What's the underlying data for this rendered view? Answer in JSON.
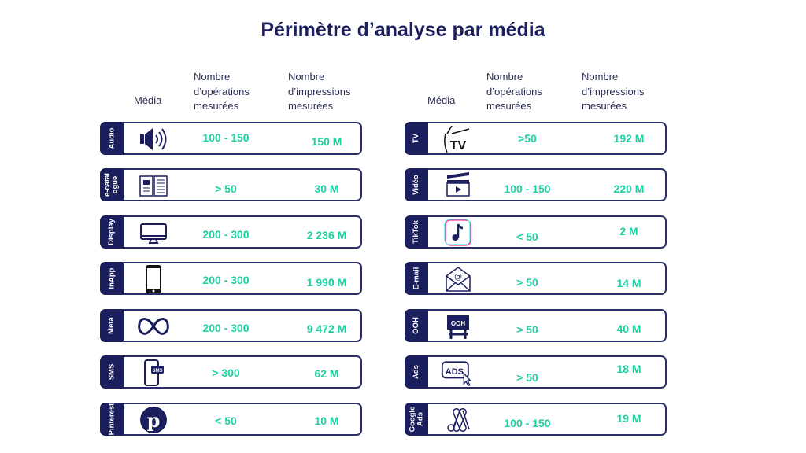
{
  "title": "Périmètre d’analyse par média",
  "headers": {
    "media": "Média",
    "operations": [
      "Nombre",
      "d’opérations",
      "mesurées"
    ],
    "impressions": [
      "Nombre",
      "d’impressions",
      "mesurées"
    ]
  },
  "colors": {
    "navy": "#1b1f5e",
    "accent": "#1ecfa2"
  },
  "left": [
    {
      "label": "Audio",
      "icon": "speaker-icon",
      "operations": "100 - 150",
      "impressions": "150 M"
    },
    {
      "label": "e-catal\nogue",
      "icon": "catalog-book-icon",
      "operations": "> 50",
      "impressions": "30 M"
    },
    {
      "label": "Display",
      "icon": "monitor-icon",
      "operations": "200 - 300",
      "impressions": "2 236 M"
    },
    {
      "label": "InApp",
      "icon": "smartphone-icon",
      "operations": "200 - 300",
      "impressions": "1 990 M"
    },
    {
      "label": "Meta",
      "icon": "meta-logo-icon",
      "operations": "200 - 300",
      "impressions": "9 472 M"
    },
    {
      "label": "SMS",
      "icon": "sms-phone-icon",
      "operations": "> 300",
      "impressions": "62 M"
    },
    {
      "label": "Pinterest",
      "icon": "pinterest-logo-icon",
      "operations": "< 50",
      "impressions": "10 M"
    }
  ],
  "right": [
    {
      "label": "TV",
      "icon": "tv-icon",
      "operations": ">50",
      "impressions": "192 M"
    },
    {
      "label": "Vidéo",
      "icon": "clapperboard-icon",
      "operations": "100 - 150",
      "impressions": "220 M"
    },
    {
      "label": "TikTok",
      "icon": "tiktok-logo-icon",
      "operations": "< 50",
      "impressions": "2 M"
    },
    {
      "label": "E-mail",
      "icon": "email-icon",
      "operations": "> 50",
      "impressions": "14 M"
    },
    {
      "label": "OOH",
      "icon": "billboard-icon",
      "operations": "> 50",
      "impressions": "40 M"
    },
    {
      "label": "Ads",
      "icon": "ads-click-icon",
      "operations": "> 50",
      "impressions": "18 M"
    },
    {
      "label": "Google\nAds",
      "icon": "google-ads-logo-icon",
      "operations": "100 - 150",
      "impressions": "19 M"
    }
  ]
}
